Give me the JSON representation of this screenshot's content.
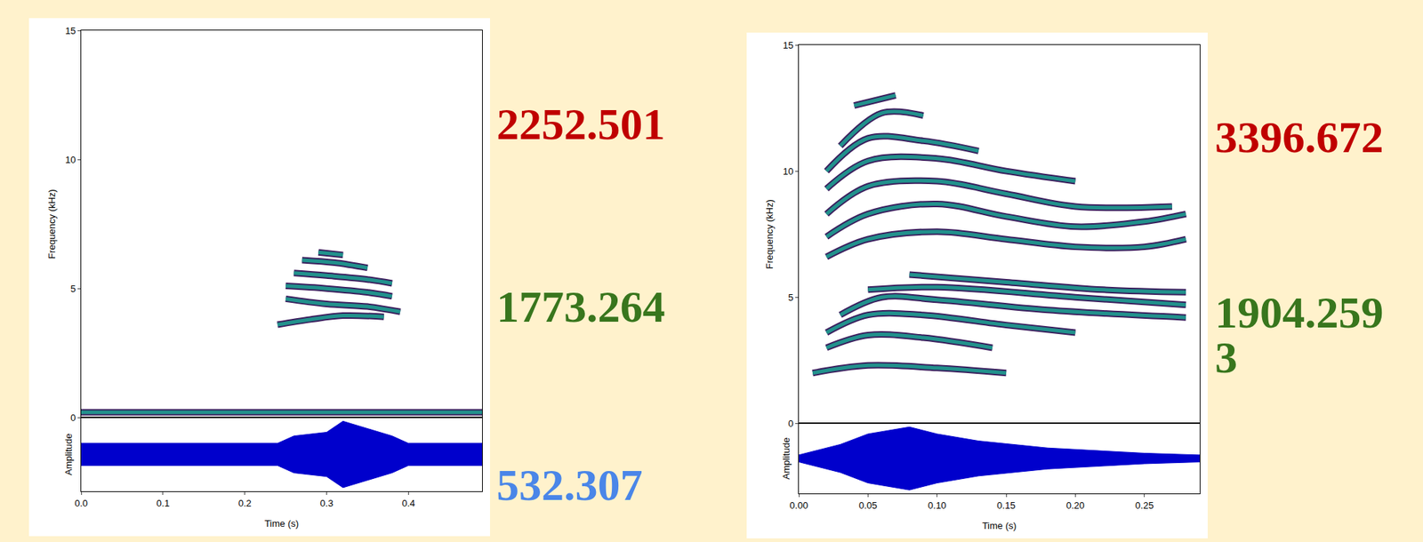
{
  "chart_data": [
    {
      "type": "spectrogram",
      "xlabel": "Time (s)",
      "ylabel": "Frequency (kHz)",
      "amplitude_label": "Amplitude",
      "xlim": [
        0,
        0.49
      ],
      "xticks": [
        {
          "value": 0,
          "label": "0.0"
        },
        {
          "value": 0.1,
          "label": "0.1"
        },
        {
          "value": 0.2,
          "label": "0.2"
        },
        {
          "value": 0.3,
          "label": "0.3"
        },
        {
          "value": 0.4,
          "label": "0.4"
        }
      ],
      "ylim": [
        0,
        15
      ],
      "yticks": [
        0,
        5,
        10,
        15
      ],
      "grid": false,
      "color": "#21918c",
      "harmonics": [
        {
          "t": [
            0,
            0.12,
            0.25,
            0.37,
            0.49
          ],
          "f": [
            0.2,
            0.2,
            0.2,
            0.2,
            0.2
          ]
        },
        {
          "t": [
            0.24,
            0.28,
            0.32,
            0.37
          ],
          "f": [
            3.6,
            3.8,
            3.95,
            3.9
          ]
        },
        {
          "t": [
            0.25,
            0.3,
            0.35,
            0.39
          ],
          "f": [
            4.6,
            4.4,
            4.3,
            4.1
          ]
        },
        {
          "t": [
            0.25,
            0.3,
            0.35,
            0.38
          ],
          "f": [
            5.1,
            5.0,
            4.85,
            4.7
          ]
        },
        {
          "t": [
            0.26,
            0.3,
            0.35,
            0.38
          ],
          "f": [
            5.6,
            5.5,
            5.35,
            5.2
          ]
        },
        {
          "t": [
            0.27,
            0.31,
            0.35
          ],
          "f": [
            6.1,
            6.0,
            5.8
          ]
        },
        {
          "t": [
            0.29,
            0.32
          ],
          "f": [
            6.4,
            6.3
          ]
        }
      ],
      "waveform": {
        "color": "#0000cc",
        "t": [
          0,
          0.1,
          0.24,
          0.26,
          0.3,
          0.32,
          0.35,
          0.38,
          0.4,
          0.49
        ],
        "amplitude": [
          0.3,
          0.3,
          0.3,
          0.5,
          0.6,
          0.9,
          0.7,
          0.5,
          0.3,
          0.3
        ]
      },
      "amplitude_lim": [
        -1,
        1
      ],
      "annotations": [
        {
          "text": "2252.501",
          "color": "#c00000"
        },
        {
          "text": "1773.264",
          "color": "#38761d"
        },
        {
          "text": "532.307",
          "color": "#4a86e8"
        }
      ]
    },
    {
      "type": "spectrogram",
      "xlabel": "Time (s)",
      "ylabel": "Frequency (kHz)",
      "amplitude_label": "Amplitude",
      "xlim": [
        0,
        0.29
      ],
      "xticks": [
        {
          "value": 0,
          "label": "0.00"
        },
        {
          "value": 0.05,
          "label": "0.05"
        },
        {
          "value": 0.1,
          "label": "0.10"
        },
        {
          "value": 0.15,
          "label": "0.15"
        },
        {
          "value": 0.2,
          "label": "0.20"
        },
        {
          "value": 0.25,
          "label": "0.25"
        }
      ],
      "ylim": [
        0,
        15
      ],
      "yticks": [
        0,
        5,
        10,
        15
      ],
      "grid": false,
      "color": "#21918c",
      "harmonics": [
        {
          "t": [
            0.01,
            0.05,
            0.1,
            0.15
          ],
          "f": [
            2.0,
            2.3,
            2.2,
            2.0
          ]
        },
        {
          "t": [
            0.02,
            0.05,
            0.09,
            0.14
          ],
          "f": [
            3.0,
            3.5,
            3.4,
            3.0
          ]
        },
        {
          "t": [
            0.02,
            0.05,
            0.09,
            0.15,
            0.2
          ],
          "f": [
            3.6,
            4.3,
            4.3,
            3.9,
            3.6
          ]
        },
        {
          "t": [
            0.03,
            0.06,
            0.1,
            0.18,
            0.28
          ],
          "f": [
            4.3,
            5.0,
            4.9,
            4.5,
            4.2
          ]
        },
        {
          "t": [
            0.05,
            0.1,
            0.2,
            0.28
          ],
          "f": [
            5.3,
            5.4,
            5.0,
            4.7
          ]
        },
        {
          "t": [
            0.08,
            0.15,
            0.22,
            0.28
          ],
          "f": [
            5.9,
            5.6,
            5.3,
            5.2
          ]
        },
        {
          "t": [
            0.02,
            0.05,
            0.1,
            0.15,
            0.2,
            0.25,
            0.28
          ],
          "f": [
            6.6,
            7.3,
            7.6,
            7.3,
            7.0,
            7.0,
            7.3
          ]
        },
        {
          "t": [
            0.02,
            0.05,
            0.1,
            0.15,
            0.2,
            0.25,
            0.28
          ],
          "f": [
            7.4,
            8.3,
            8.7,
            8.2,
            7.8,
            8.0,
            8.3
          ]
        },
        {
          "t": [
            0.02,
            0.05,
            0.1,
            0.15,
            0.2,
            0.27
          ],
          "f": [
            8.3,
            9.4,
            9.6,
            9.1,
            8.6,
            8.6
          ]
        },
        {
          "t": [
            0.02,
            0.05,
            0.1,
            0.15,
            0.2
          ],
          "f": [
            9.3,
            10.4,
            10.5,
            10.0,
            9.6
          ]
        },
        {
          "t": [
            0.02,
            0.05,
            0.09,
            0.13
          ],
          "f": [
            10.0,
            11.3,
            11.2,
            10.8
          ]
        },
        {
          "t": [
            0.03,
            0.06,
            0.09
          ],
          "f": [
            11.0,
            12.3,
            12.2
          ]
        },
        {
          "t": [
            0.04,
            0.07
          ],
          "f": [
            12.6,
            13.0
          ]
        }
      ],
      "waveform": {
        "color": "#0000cc",
        "t": [
          0,
          0.03,
          0.05,
          0.08,
          0.1,
          0.13,
          0.18,
          0.25,
          0.29
        ],
        "amplitude": [
          0.1,
          0.4,
          0.7,
          0.9,
          0.7,
          0.5,
          0.3,
          0.15,
          0.1
        ]
      },
      "amplitude_lim": [
        -1,
        1
      ],
      "annotations": [
        {
          "text": "3396.672",
          "color": "#c00000"
        },
        {
          "text": "1904.2593",
          "color": "#38761d"
        }
      ]
    }
  ]
}
